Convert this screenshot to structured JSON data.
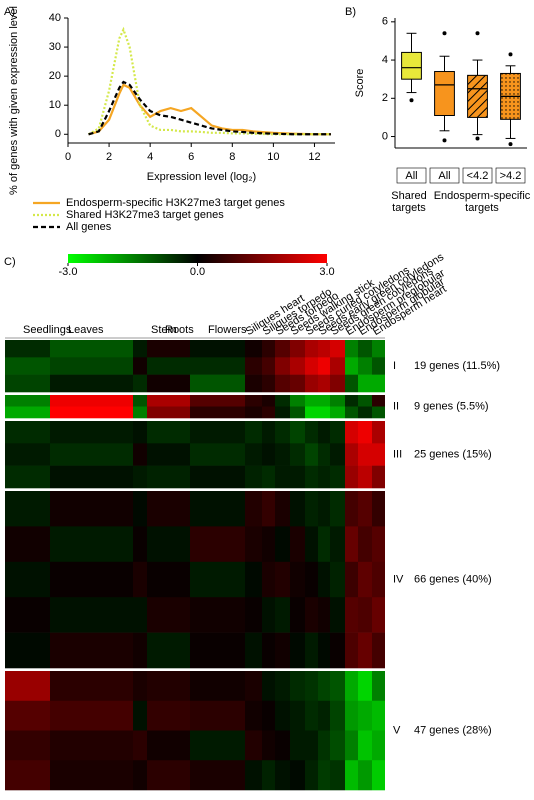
{
  "chart_data": [
    {
      "type": "line",
      "panel_label": "A)",
      "x_label": "Expression level (log₂)",
      "y_label": "% of genes with given expression level",
      "x": [
        1,
        1.5,
        2,
        2.5,
        2.7,
        3,
        3.5,
        4,
        4.5,
        5,
        5.5,
        6,
        6.5,
        7,
        7.5,
        8,
        8.5,
        9,
        10,
        11,
        12,
        12.8
      ],
      "xlim": [
        0,
        13
      ],
      "xticks": [
        0,
        2,
        4,
        6,
        8,
        10,
        12
      ],
      "ylim": [
        -3,
        40
      ],
      "yticks": [
        0,
        10,
        20,
        30,
        40
      ],
      "series": [
        {
          "name": "Endosperm-specific H3K27me3 target genes",
          "color": "#f5a623",
          "dash": "solid",
          "values": [
            0,
            1,
            5,
            14,
            17,
            16,
            10,
            6,
            8,
            9,
            8,
            9,
            6,
            3,
            2,
            1.5,
            1.5,
            1,
            0.5,
            0.2,
            0,
            0
          ]
        },
        {
          "name": "Shared H3K27me3 target genes",
          "color": "#d4e84a",
          "dash": "dotted",
          "values": [
            0,
            2,
            15,
            33,
            36,
            30,
            10,
            3,
            1.5,
            1.5,
            1,
            1,
            0.8,
            0.5,
            0.5,
            0.3,
            0.3,
            0.2,
            0,
            0,
            0,
            0
          ]
        },
        {
          "name": "All genes",
          "color": "#000000",
          "dash": "dashed",
          "values": [
            0,
            1,
            8,
            16,
            18,
            17,
            12,
            8,
            6.5,
            6,
            5,
            4,
            3,
            2,
            1.5,
            1,
            0.8,
            0.5,
            0.2,
            0,
            0,
            0
          ]
        }
      ]
    },
    {
      "type": "box",
      "panel_label": "B)",
      "y_label": "Score",
      "categories": [
        "All",
        "All",
        "<4.2",
        ">4.2"
      ],
      "group_labels": [
        "Shared targets",
        "Endosperm-specific targets"
      ],
      "ylim": [
        -0.6,
        6.2
      ],
      "yticks": [
        0,
        2,
        4,
        6
      ],
      "boxes": [
        {
          "color": "#e8e83a",
          "pattern": "none",
          "whislo": 2.3,
          "q1": 3,
          "median": 3.6,
          "q3": 4.4,
          "whishi": 5.4,
          "fliers": [
            1.9
          ]
        },
        {
          "color": "#f7941d",
          "pattern": "none",
          "whislo": 0.3,
          "q1": 1.1,
          "median": 2.7,
          "q3": 3.4,
          "whishi": 4.2,
          "fliers": [
            -0.2,
            5.4
          ]
        },
        {
          "color": "#f7941d",
          "pattern": "hatch",
          "whislo": 0.1,
          "q1": 1,
          "median": 2.5,
          "q3": 3.2,
          "whishi": 4,
          "fliers": [
            -0.1,
            5.4
          ]
        },
        {
          "color": "#f7941d",
          "pattern": "dots",
          "whislo": -0.1,
          "q1": 0.9,
          "median": 2.1,
          "q3": 3.3,
          "whishi": 3.7,
          "fliers": [
            -0.4,
            4.3
          ]
        }
      ]
    },
    {
      "type": "heatmap",
      "panel_label": "C)",
      "clim": [
        -3,
        3
      ],
      "colorbar_ticks": [
        {
          "value": -3,
          "label": "-3.0"
        },
        {
          "value": 0,
          "label": "0.0"
        },
        {
          "value": 3,
          "label": "3.0"
        }
      ],
      "columns": [
        "Seedlings",
        "Leaves",
        "Stem",
        "Roots",
        "Flowers",
        "Siliques heart",
        "Siliques torpedo",
        "Seeds torpedo",
        "Seeds walking stick",
        "Seeds curled cotyledons",
        "Seeds early green cotyledons",
        "Seeds green cotyledons",
        "Endosperm preglobular",
        "Endosperm globular",
        "Endosperm heart"
      ],
      "clusters": [
        {
          "label": "I",
          "genes": "19 genes (11.5%)",
          "rows": [
            [
              -0.5,
              -1,
              -0.3,
              0.3,
              -0.2,
              0.2,
              0.5,
              1,
              1.5,
              2,
              2.2,
              2.5,
              -1.5,
              -1,
              -1.5
            ],
            [
              -1,
              -0.8,
              0.2,
              -0.5,
              -0.5,
              0.5,
              0.8,
              1.5,
              2,
              2.5,
              2.8,
              2,
              -2,
              -1.5,
              -1
            ],
            [
              -0.8,
              -0.3,
              -0.5,
              0.2,
              -1,
              0.3,
              0.5,
              1,
              1.2,
              1.8,
              2,
              1.5,
              -1,
              -2,
              -2
            ]
          ]
        },
        {
          "label": "II",
          "genes": "9 genes (5.5%)",
          "rows": [
            [
              -1.5,
              2.8,
              -1,
              2,
              1,
              0.5,
              0.3,
              -0.5,
              -1.5,
              -2,
              -2,
              -1.5,
              -0.5,
              -1,
              0.5
            ],
            [
              -2,
              3,
              -1.5,
              1.5,
              0.5,
              0.3,
              0.5,
              -0.3,
              -1,
              -2.5,
              -2.5,
              -2,
              -1,
              -0.5,
              -1
            ]
          ]
        },
        {
          "label": "III",
          "genes": "25 genes (15%)",
          "rows": [
            [
              -0.5,
              -0.3,
              -0.2,
              -0.5,
              -0.3,
              -0.5,
              -0.3,
              -0.5,
              -0.8,
              -0.5,
              -0.3,
              -0.5,
              2.5,
              2.8,
              2
            ],
            [
              -0.3,
              -0.5,
              0.2,
              -0.2,
              -0.5,
              -0.3,
              -0.2,
              -0.3,
              -0.5,
              -0.8,
              -0.5,
              -0.3,
              2,
              2.5,
              2.5
            ],
            [
              -0.5,
              -0.2,
              -0.3,
              -0.4,
              -0.2,
              -0.4,
              -0.5,
              -0.3,
              -0.3,
              -0.5,
              -0.4,
              -0.5,
              1.8,
              2.2,
              1.5
            ]
          ]
        },
        {
          "label": "IV",
          "genes": "66 genes (40%)",
          "rows": [
            [
              -0.3,
              0.2,
              -0.1,
              0.3,
              -0.2,
              0.4,
              0.6,
              0.3,
              -0.2,
              -0.4,
              -0.3,
              -0.5,
              0.8,
              1,
              0.6
            ],
            [
              0.2,
              -0.3,
              0.1,
              -0.2,
              0.5,
              0.3,
              0.2,
              -0.1,
              0.3,
              -0.2,
              -0.5,
              -0.3,
              1.2,
              0.8,
              1
            ],
            [
              -0.2,
              0.1,
              0.3,
              0.1,
              -0.3,
              -0.1,
              0.3,
              0.4,
              0.2,
              0.1,
              -0.2,
              -0.4,
              0.7,
              1.1,
              0.9
            ],
            [
              0.1,
              -0.2,
              -0.2,
              0.3,
              0.2,
              0.1,
              -0.2,
              -0.3,
              0.1,
              0.3,
              0.2,
              -0.2,
              1,
              0.9,
              1.2
            ],
            [
              -0.1,
              0.3,
              0.2,
              -0.3,
              0.1,
              -0.2,
              0.1,
              0.2,
              -0.1,
              -0.3,
              -0.1,
              0.1,
              0.9,
              1.2,
              0.8
            ]
          ]
        },
        {
          "label": "V",
          "genes": "47 genes (28%)",
          "rows": [
            [
              1.8,
              0.5,
              0.3,
              0.4,
              0.2,
              0.3,
              -0.2,
              -0.3,
              -0.5,
              -0.6,
              -0.8,
              -1,
              -2,
              -2.5,
              -1.5
            ],
            [
              1,
              0.8,
              -0.2,
              0.6,
              0.5,
              0.2,
              0.1,
              -0.2,
              -0.3,
              -0.5,
              -0.4,
              -0.8,
              -1.8,
              -2,
              -2.2
            ],
            [
              0.6,
              0.4,
              0.5,
              0.2,
              -0.3,
              0.4,
              0.2,
              0.1,
              -0.3,
              -0.3,
              -0.6,
              -0.9,
              -1.5,
              -2.3,
              -2
            ],
            [
              0.8,
              0.3,
              0.2,
              0.5,
              0.3,
              -0.2,
              -0.4,
              -0.2,
              -0.1,
              -0.4,
              -0.7,
              -0.6,
              -2.2,
              -1.8,
              -2.4
            ]
          ]
        }
      ]
    }
  ]
}
